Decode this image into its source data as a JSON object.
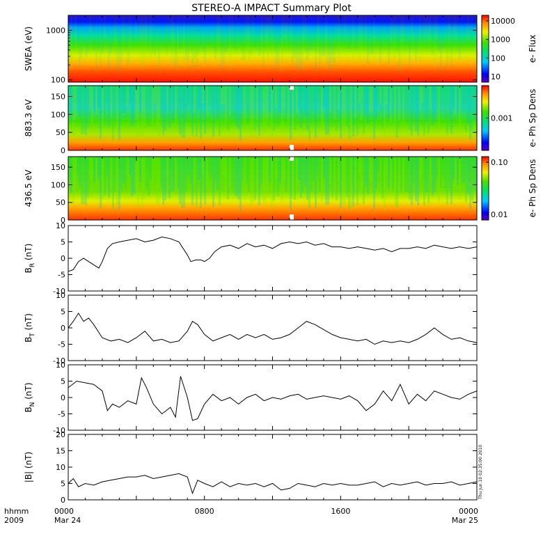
{
  "chart_data": {
    "type": "line",
    "title": "STEREO-A IMPACT Summary Plot",
    "x_axis": {
      "range_hours": [
        0,
        24
      ],
      "tick_hours": [
        0,
        8,
        16,
        24
      ],
      "tick_labels": [
        "0000",
        "0800",
        "1600",
        "0000"
      ],
      "date_labels": [
        "Mar 24",
        "",
        "",
        "Mar 25"
      ],
      "corner_labels": [
        "hhmm",
        "2009"
      ]
    },
    "timestamp": "Thu Jun 10 02:35:00 2010",
    "panels": [
      {
        "id": "swea",
        "type": "heatmap",
        "ylabel": "SWEA (eV)",
        "yscale": "log",
        "ylim": [
          90,
          2000
        ],
        "yticks": [
          100,
          1000
        ],
        "ytick_labels": [
          "100",
          "1000"
        ],
        "colorbar": {
          "label": "e- Flux",
          "scale": "log",
          "ticks": [
            "10",
            "100",
            "1000",
            "10000"
          ]
        }
      },
      {
        "id": "pad_883",
        "type": "heatmap",
        "ylabel": "883.3 eV",
        "ylim": [
          0,
          180
        ],
        "yticks": [
          0,
          50,
          100,
          150
        ],
        "ytick_labels": [
          "0",
          "50",
          "100",
          "150"
        ],
        "colorbar": {
          "label": "e- Ph Sp Dens",
          "scale": "log",
          "ticks": [
            "0.001"
          ]
        }
      },
      {
        "id": "pad_436",
        "type": "heatmap",
        "ylabel": "436.5 eV",
        "ylim": [
          0,
          180
        ],
        "yticks": [
          0,
          50,
          100,
          150
        ],
        "ytick_labels": [
          "0",
          "50",
          "100",
          "150"
        ],
        "colorbar": {
          "label": "e- Ph Sp Dens",
          "scale": "log",
          "ticks": [
            "0.01",
            "0.10"
          ]
        }
      },
      {
        "id": "br",
        "type": "line",
        "ylabel_main": "B",
        "ylabel_sub": "R",
        "ylabel_unit": " (nT)",
        "ylim": [
          -10,
          10
        ],
        "yticks": [
          -10,
          -5,
          0,
          5,
          10
        ],
        "ytick_labels": [
          "-10",
          "-5",
          "0",
          "5",
          "10"
        ],
        "x_hours": [
          0,
          0.3,
          0.6,
          0.9,
          1.2,
          1.5,
          1.8,
          2.0,
          2.3,
          2.6,
          3.0,
          3.5,
          4.0,
          4.5,
          5.0,
          5.5,
          6.0,
          6.5,
          7.0,
          7.2,
          7.5,
          7.8,
          8.0,
          8.3,
          8.6,
          9.0,
          9.5,
          10.0,
          10.5,
          11.0,
          11.5,
          12.0,
          12.5,
          13.0,
          13.5,
          14.0,
          14.5,
          15.0,
          15.5,
          16.0,
          16.5,
          17.0,
          17.5,
          18.0,
          18.5,
          19.0,
          19.5,
          20.0,
          20.5,
          21.0,
          21.5,
          22.0,
          22.5,
          23.0,
          23.5,
          24.0
        ],
        "values": [
          -4.0,
          -3.5,
          -1.0,
          0.0,
          -1.0,
          -2.0,
          -3.0,
          -1.0,
          3.0,
          4.5,
          5.0,
          5.5,
          6.0,
          5.0,
          5.5,
          6.5,
          6.0,
          5.0,
          1.0,
          -1.0,
          -0.5,
          -0.5,
          -1.0,
          0.0,
          2.0,
          3.5,
          4.0,
          3.0,
          4.5,
          3.5,
          4.0,
          3.0,
          4.5,
          5.0,
          4.5,
          5.0,
          4.0,
          4.5,
          3.5,
          3.5,
          3.0,
          3.5,
          3.0,
          2.5,
          3.0,
          2.0,
          3.0,
          3.0,
          3.5,
          3.0,
          4.0,
          3.5,
          3.0,
          3.5,
          3.0,
          3.5
        ]
      },
      {
        "id": "bt",
        "type": "line",
        "ylabel_main": "B",
        "ylabel_sub": "T",
        "ylabel_unit": " (nT)",
        "ylim": [
          -10,
          10
        ],
        "yticks": [
          -10,
          -5,
          0,
          5,
          10
        ],
        "ytick_labels": [
          "-10",
          "-5",
          "0",
          "5",
          "10"
        ],
        "x_hours": [
          0,
          0.3,
          0.6,
          0.9,
          1.2,
          1.5,
          2.0,
          2.5,
          3.0,
          3.5,
          4.0,
          4.5,
          5.0,
          5.5,
          6.0,
          6.5,
          7.0,
          7.3,
          7.6,
          8.0,
          8.5,
          9.0,
          9.5,
          10.0,
          10.5,
          11.0,
          11.5,
          12.0,
          12.5,
          13.0,
          13.5,
          14.0,
          14.5,
          15.0,
          15.5,
          16.0,
          16.5,
          17.0,
          17.5,
          18.0,
          18.5,
          19.0,
          19.5,
          20.0,
          20.5,
          21.0,
          21.5,
          22.0,
          22.5,
          23.0,
          23.5,
          24.0
        ],
        "values": [
          0.0,
          2.0,
          4.5,
          2.0,
          3.0,
          1.0,
          -3.0,
          -4.0,
          -3.5,
          -4.5,
          -3.0,
          -1.0,
          -4.0,
          -3.5,
          -4.5,
          -4.0,
          -1.0,
          2.0,
          1.0,
          -2.0,
          -4.0,
          -3.0,
          -2.0,
          -3.5,
          -2.0,
          -3.0,
          -2.0,
          -3.5,
          -3.0,
          -2.0,
          0.0,
          2.0,
          1.0,
          -0.5,
          -2.0,
          -3.0,
          -3.5,
          -4.0,
          -3.5,
          -5.0,
          -4.0,
          -4.5,
          -4.0,
          -4.5,
          -3.5,
          -2.0,
          0.0,
          -2.0,
          -3.5,
          -3.0,
          -4.0,
          -4.5
        ]
      },
      {
        "id": "bn",
        "type": "line",
        "ylabel_main": "B",
        "ylabel_sub": "N",
        "ylabel_unit": " (nT)",
        "ylim": [
          -10,
          10
        ],
        "yticks": [
          -10,
          -5,
          0,
          5,
          10
        ],
        "ytick_labels": [
          "-10",
          "-5",
          "0",
          "5",
          "10"
        ],
        "x_hours": [
          0,
          0.5,
          1.0,
          1.5,
          2.0,
          2.3,
          2.6,
          3.0,
          3.5,
          4.0,
          4.3,
          4.6,
          5.0,
          5.5,
          6.0,
          6.3,
          6.6,
          7.0,
          7.3,
          7.6,
          8.0,
          8.5,
          9.0,
          9.5,
          10.0,
          10.5,
          11.0,
          11.5,
          12.0,
          12.5,
          13.0,
          13.5,
          14.0,
          14.5,
          15.0,
          15.5,
          16.0,
          16.5,
          17.0,
          17.5,
          18.0,
          18.5,
          19.0,
          19.5,
          20.0,
          20.5,
          21.0,
          21.5,
          22.0,
          22.5,
          23.0,
          23.5,
          24.0
        ],
        "values": [
          3.0,
          5.0,
          4.5,
          4.0,
          2.0,
          -4.0,
          -2.0,
          -3.0,
          -1.0,
          -2.0,
          6.0,
          3.0,
          -2.0,
          -5.0,
          -3.0,
          -6.0,
          6.5,
          0.0,
          -7.0,
          -6.5,
          -2.0,
          1.0,
          -1.0,
          0.0,
          -2.0,
          0.0,
          1.0,
          -1.0,
          0.0,
          -0.5,
          0.5,
          1.0,
          -0.5,
          0.0,
          0.5,
          0.0,
          -0.5,
          0.5,
          -1.0,
          -4.0,
          -2.0,
          2.0,
          -1.0,
          4.0,
          -2.0,
          1.0,
          -1.0,
          2.0,
          1.0,
          0.0,
          -0.5,
          1.0,
          2.0
        ]
      },
      {
        "id": "bmag",
        "type": "line",
        "ylabel": "|B| (nT)",
        "ylim": [
          0,
          20
        ],
        "yticks": [
          0,
          5,
          10,
          15,
          20
        ],
        "ytick_labels": [
          "0",
          "5",
          "10",
          "15",
          "20"
        ],
        "x_hours": [
          0,
          0.3,
          0.6,
          1.0,
          1.5,
          2.0,
          2.5,
          3.0,
          3.5,
          4.0,
          4.5,
          5.0,
          5.5,
          6.0,
          6.5,
          7.0,
          7.3,
          7.6,
          8.0,
          8.5,
          9.0,
          9.5,
          10.0,
          10.5,
          11.0,
          11.5,
          12.0,
          12.5,
          13.0,
          13.5,
          14.0,
          14.5,
          15.0,
          15.5,
          16.0,
          16.5,
          17.0,
          17.5,
          18.0,
          18.5,
          19.0,
          19.5,
          20.0,
          20.5,
          21.0,
          21.5,
          22.0,
          22.5,
          23.0,
          23.5,
          24.0
        ],
        "values": [
          5.0,
          6.5,
          4.0,
          5.0,
          4.5,
          5.5,
          6.0,
          6.5,
          7.0,
          7.0,
          7.5,
          6.5,
          7.0,
          7.5,
          8.0,
          7.0,
          2.0,
          6.0,
          5.0,
          4.0,
          5.5,
          4.0,
          5.0,
          4.5,
          5.0,
          4.0,
          5.0,
          3.0,
          3.5,
          5.0,
          4.5,
          4.0,
          5.0,
          4.5,
          5.0,
          4.5,
          4.5,
          5.0,
          5.5,
          4.0,
          5.0,
          4.5,
          5.0,
          5.5,
          4.5,
          5.0,
          5.0,
          5.5,
          4.5,
          5.0,
          5.5
        ]
      }
    ]
  }
}
